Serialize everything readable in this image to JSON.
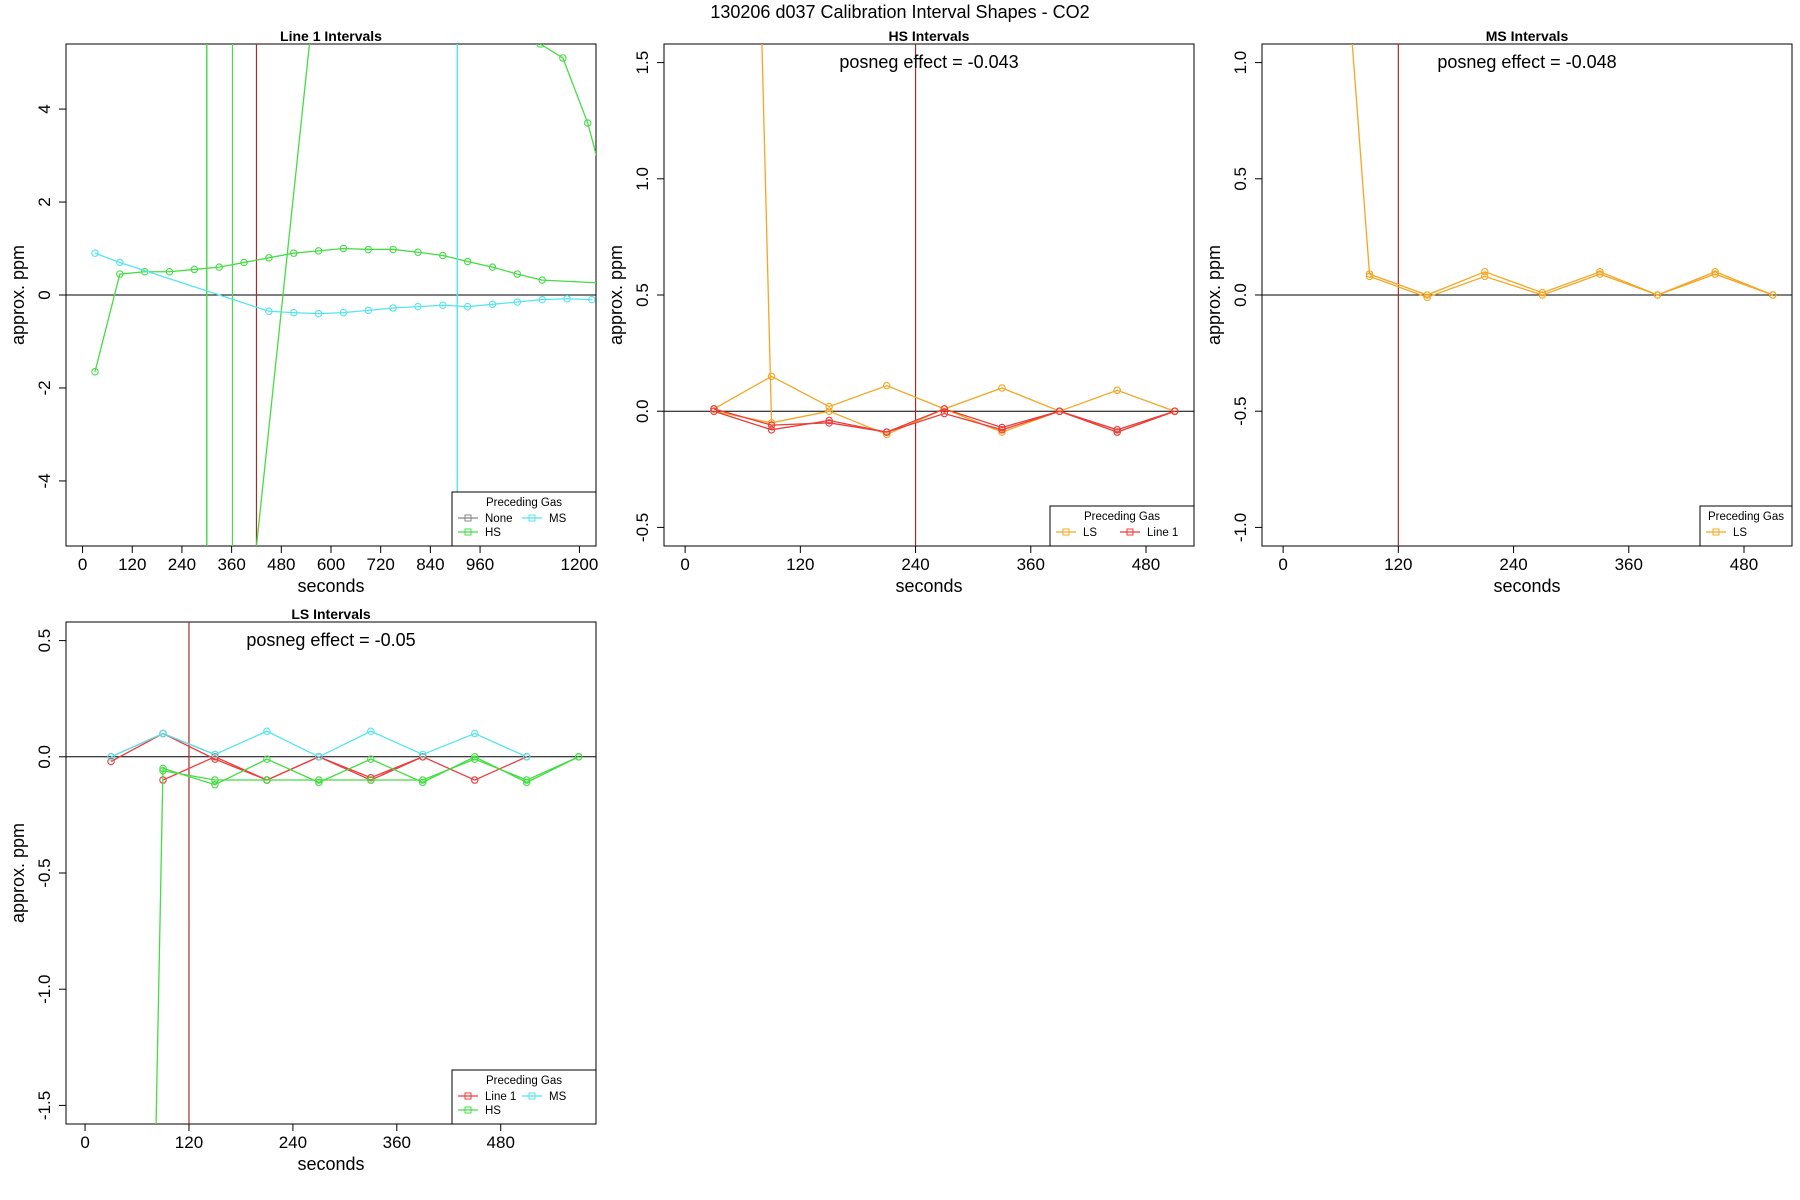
{
  "title": "130206  d037   Calibration Interval Shapes - CO2",
  "colors": {
    "None": "#888888",
    "HS": "#44dd44",
    "MS": "#55e5ee",
    "LS": "#f5a623",
    "Line 1": "#ee3b3b",
    "refline": "#a52a2a",
    "axis": "#000000"
  },
  "chart_data": [
    {
      "type": "line",
      "title": "Line 1 Intervals",
      "xlabel": "seconds",
      "ylabel": "approx. ppm",
      "xlim": [
        -40,
        1240
      ],
      "ylim": [
        -5.4,
        5.4
      ],
      "xticks": [
        0,
        120,
        240,
        360,
        480,
        600,
        720,
        840,
        960,
        1200
      ],
      "yticks": [
        -4,
        -2,
        0,
        2,
        4
      ],
      "zero_line": true,
      "annotation": "",
      "legend": {
        "title": "Preceding Gas",
        "entries": [
          "None",
          "HS",
          "MS"
        ],
        "position": "bottom-right"
      },
      "vlines": [
        {
          "x": 300,
          "color": "HS"
        },
        {
          "x": 362,
          "color": "HS"
        },
        {
          "x": 420,
          "color": "refline"
        },
        {
          "x": 905,
          "color": "MS"
        }
      ],
      "series": [
        {
          "name": "HS",
          "color": "HS",
          "x": [
            30,
            90,
            150,
            210,
            270,
            330,
            390,
            450,
            510,
            570,
            630,
            690,
            750,
            810,
            870,
            930,
            990,
            1050,
            1110
          ],
          "y": [
            -1.65,
            0.45,
            0.5,
            0.5,
            0.55,
            0.6,
            0.7,
            0.8,
            0.9,
            0.95,
            1.0,
            0.98,
            0.98,
            0.92,
            0.85,
            0.72,
            0.6,
            0.45,
            0.32
          ]
        },
        {
          "name": "HS",
          "color": "HS",
          "points": false,
          "x": [
            1110,
            1250
          ],
          "y": [
            0.32,
            0.26
          ]
        },
        {
          "name": "HS",
          "color": "HS",
          "points": false,
          "x": [
            300,
            300
          ],
          "y": [
            -5.4,
            5.4
          ]
        },
        {
          "name": "HS",
          "color": "HS",
          "points": false,
          "x": [
            420,
            548
          ],
          "y": [
            -5.4,
            5.4
          ]
        },
        {
          "name": "HS",
          "color": "HS",
          "x": [
            1105,
            1160,
            1220,
            1250
          ],
          "y": [
            5.4,
            5.1,
            3.7,
            2.7
          ]
        },
        {
          "name": "MS",
          "color": "MS",
          "x": [
            30,
            90,
            450,
            510,
            570,
            630,
            690,
            750,
            810,
            870,
            930,
            990,
            1050,
            1110,
            1170,
            1230
          ],
          "y": [
            0.9,
            0.7,
            -0.35,
            -0.38,
            -0.4,
            -0.38,
            -0.33,
            -0.28,
            -0.25,
            -0.22,
            -0.25,
            -0.2,
            -0.15,
            -0.1,
            -0.08,
            -0.1
          ]
        },
        {
          "name": "MS",
          "color": "MS",
          "points": false,
          "x": [
            905,
            905
          ],
          "y": [
            -5.4,
            5.4
          ]
        }
      ]
    },
    {
      "type": "line",
      "title": "HS Intervals",
      "xlabel": "seconds",
      "ylabel": "approx. ppm",
      "xlim": [
        -22,
        530
      ],
      "ylim": [
        -0.58,
        1.58
      ],
      "xticks": [
        0,
        120,
        240,
        360,
        480
      ],
      "yticks": [
        -0.5,
        0.0,
        0.5,
        1.0,
        1.5
      ],
      "zero_line": true,
      "annotation": "posneg effect = -0.043",
      "legend": {
        "title": "Preceding Gas",
        "entries": [
          "LS",
          "Line 1"
        ],
        "position": "bottom-right"
      },
      "vlines": [
        {
          "x": 240,
          "color": "refline"
        }
      ],
      "series": [
        {
          "name": "LS",
          "color": "LS",
          "points": false,
          "x": [
            80,
            90
          ],
          "y": [
            1.58,
            -0.05
          ]
        },
        {
          "name": "LS",
          "color": "LS",
          "x": [
            30,
            90,
            150,
            210,
            270,
            330,
            390,
            450,
            510
          ],
          "y": [
            0.01,
            0.15,
            0.02,
            0.11,
            0.01,
            0.1,
            0.0,
            0.09,
            0.0
          ]
        },
        {
          "name": "LS",
          "color": "LS",
          "x": [
            30,
            90,
            150,
            210,
            270,
            330,
            390,
            450,
            510
          ],
          "y": [
            0.0,
            -0.05,
            0.0,
            -0.1,
            0.01,
            -0.09,
            0.0,
            -0.09,
            0.0
          ]
        },
        {
          "name": "Line 1",
          "color": "Line 1",
          "x": [
            30,
            90,
            150,
            210,
            270,
            330,
            390,
            450,
            510
          ],
          "y": [
            0.01,
            -0.06,
            -0.05,
            -0.09,
            0.01,
            -0.07,
            0.0,
            -0.09,
            0.0
          ]
        },
        {
          "name": "Line 1",
          "color": "Line 1",
          "x": [
            30,
            90,
            150,
            210,
            270,
            330,
            390,
            450,
            510
          ],
          "y": [
            0.0,
            -0.08,
            -0.04,
            -0.09,
            -0.01,
            -0.08,
            0.0,
            -0.08,
            0.0
          ]
        }
      ]
    },
    {
      "type": "line",
      "title": "MS Intervals",
      "xlabel": "seconds",
      "ylabel": "approx. ppm",
      "xlim": [
        -22,
        530
      ],
      "ylim": [
        -1.08,
        1.08
      ],
      "xticks": [
        0,
        120,
        240,
        360,
        480
      ],
      "yticks": [
        -1.0,
        -0.5,
        0.0,
        0.5,
        1.0
      ],
      "zero_line": true,
      "annotation": "posneg effect = -0.048",
      "legend": {
        "title": "Preceding Gas",
        "entries": [
          "LS"
        ],
        "position": "bottom-right"
      },
      "vlines": [
        {
          "x": 120,
          "color": "refline"
        }
      ],
      "series": [
        {
          "name": "LS",
          "color": "LS",
          "points": false,
          "x": [
            72,
            90
          ],
          "y": [
            1.08,
            0.09
          ]
        },
        {
          "name": "LS",
          "color": "LS",
          "x": [
            90,
            150,
            210,
            270,
            330,
            390,
            450,
            510
          ],
          "y": [
            0.09,
            0.0,
            0.1,
            0.01,
            0.1,
            0.0,
            0.1,
            0.0
          ]
        },
        {
          "name": "LS",
          "color": "LS",
          "x": [
            90,
            150,
            210,
            270,
            330,
            390,
            450,
            510
          ],
          "y": [
            0.08,
            -0.01,
            0.08,
            0.0,
            0.09,
            0.0,
            0.09,
            0.0
          ]
        }
      ]
    },
    {
      "type": "line",
      "title": "LS Intervals",
      "xlabel": "seconds",
      "ylabel": "approx. ppm",
      "xlim": [
        -22,
        590
      ],
      "ylim": [
        -1.58,
        0.58
      ],
      "xticks": [
        0,
        120,
        240,
        360,
        480
      ],
      "yticks": [
        -1.5,
        -1.0,
        -0.5,
        0.0,
        0.5
      ],
      "zero_line": true,
      "annotation": "posneg effect = -0.05",
      "legend": {
        "title": "Preceding Gas",
        "entries": [
          "Line 1",
          "HS",
          "MS"
        ],
        "position": "bottom-right"
      },
      "vlines": [
        {
          "x": 120,
          "color": "refline"
        }
      ],
      "series": [
        {
          "name": "None",
          "color": "None",
          "x": [
            30,
            90,
            150
          ],
          "y": [
            0.0,
            0.1,
            0.01
          ]
        },
        {
          "name": "Line 1",
          "color": "Line 1",
          "x": [
            30,
            90,
            150,
            210,
            270,
            330,
            390,
            450,
            510
          ],
          "y": [
            -0.02,
            0.1,
            -0.01,
            -0.1,
            0.0,
            -0.09,
            0.0,
            -0.1,
            0.0
          ]
        },
        {
          "name": "Line 1",
          "color": "Line 1",
          "x": [
            90,
            150,
            210,
            270,
            330,
            390
          ],
          "y": [
            -0.1,
            0.0,
            -0.1,
            0.0,
            -0.1,
            0.0
          ]
        },
        {
          "name": "HS",
          "color": "HS",
          "points": false,
          "x": [
            82,
            90
          ],
          "y": [
            -1.58,
            -0.05
          ]
        },
        {
          "name": "HS",
          "color": "HS",
          "x": [
            90,
            150,
            210,
            270,
            330,
            390,
            450,
            510,
            570
          ],
          "y": [
            -0.05,
            -0.12,
            -0.01,
            -0.11,
            -0.01,
            -0.11,
            0.0,
            -0.11,
            0.0
          ]
        },
        {
          "name": "HS",
          "color": "HS",
          "x": [
            90,
            150,
            210,
            270,
            330,
            390,
            450,
            510,
            570
          ],
          "y": [
            -0.06,
            -0.1,
            -0.1,
            -0.1,
            -0.1,
            -0.1,
            -0.01,
            -0.1,
            0.0
          ]
        },
        {
          "name": "MS",
          "color": "MS",
          "x": [
            30,
            90,
            150,
            210,
            270,
            330,
            390,
            450,
            510
          ],
          "y": [
            0.0,
            0.1,
            0.01,
            0.11,
            0.0,
            0.11,
            0.01,
            0.1,
            0.0
          ]
        }
      ]
    }
  ]
}
